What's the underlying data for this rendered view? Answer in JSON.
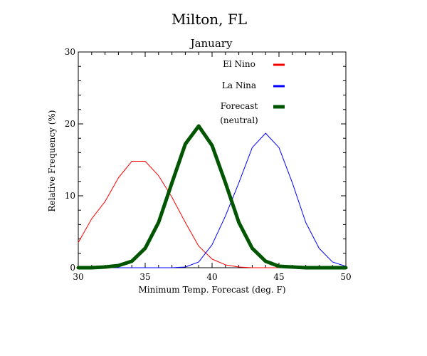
{
  "chart_data": {
    "type": "line",
    "title": "Milton, FL",
    "subtitle": "January",
    "xlabel": "Minimum Temp. Forecast (deg. F)",
    "ylabel": "Relative Frequency (%)",
    "xlim": [
      30,
      50
    ],
    "ylim": [
      0,
      30
    ],
    "xticks": [
      30,
      35,
      40,
      45,
      50
    ],
    "yticks": [
      0,
      10,
      20,
      30
    ],
    "grid": false,
    "legend_position": "top-right",
    "x": [
      30,
      31,
      32,
      33,
      34,
      35,
      36,
      37,
      38,
      39,
      40,
      41,
      42,
      43,
      44,
      45,
      46,
      47,
      48,
      49,
      50
    ],
    "series": [
      {
        "name": "El Nino",
        "color": "#ff0000",
        "width": 1,
        "values": [
          3.5,
          6.8,
          9.2,
          12.5,
          14.8,
          14.8,
          12.8,
          9.8,
          6.3,
          3.0,
          1.2,
          0.4,
          0.1,
          0,
          0,
          0,
          0,
          0,
          0,
          0,
          0
        ]
      },
      {
        "name": "La Nina",
        "color": "#0000ff",
        "width": 1,
        "values": [
          0,
          0,
          0,
          0,
          0,
          0,
          0,
          0,
          0.1,
          0.8,
          3.2,
          7.2,
          11.8,
          16.7,
          18.7,
          16.7,
          11.8,
          6.3,
          2.7,
          0.8,
          0.2
        ]
      },
      {
        "name": "Forecast\n(neutral)",
        "color": "#005500",
        "width": 5,
        "values": [
          0,
          0,
          0.1,
          0.3,
          0.9,
          2.7,
          6.3,
          11.8,
          17.2,
          19.7,
          17.0,
          11.8,
          6.3,
          2.7,
          0.9,
          0.2,
          0.1,
          0,
          0,
          0,
          0
        ]
      }
    ]
  }
}
